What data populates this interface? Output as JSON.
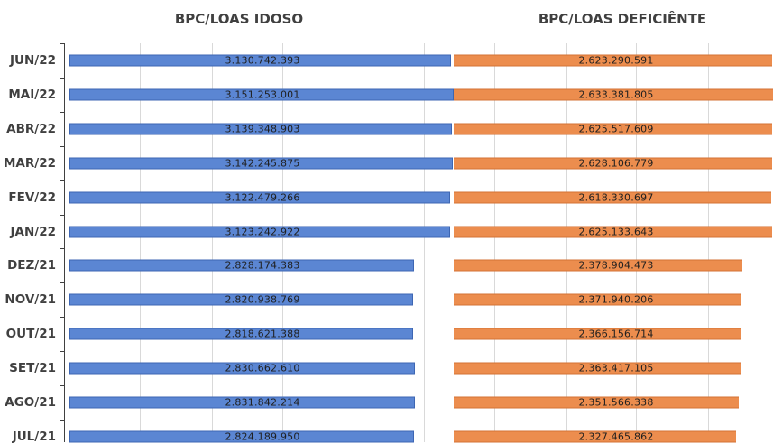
{
  "chart_data": {
    "type": "bar",
    "orientation": "horizontal",
    "stacked": true,
    "categories": [
      "JUN/22",
      "MAI/22",
      "ABR/22",
      "MAR/22",
      "FEV/22",
      "JAN/22",
      "DEZ/21",
      "NOV/21",
      "OUT/21",
      "SET/21",
      "AGO/21",
      "JUL/21"
    ],
    "series": [
      {
        "name": "BPC/LOAS IDOSO",
        "color": "#5b86d3",
        "values": [
          3130742393,
          3151253001,
          3139348903,
          3142245875,
          3122479266,
          3123242922,
          2828174383,
          2820938769,
          2818621388,
          2830662610,
          2831842214,
          2824189950
        ],
        "labels": [
          "3.130.742.393",
          "3.151.253.001",
          "3.139.348.903",
          "3.142.245.875",
          "3.122.479.266",
          "3.123.242.922",
          "2.828.174.383",
          "2.820.938.769",
          "2.818.621.388",
          "2.830.662.610",
          "2.831.842.214",
          "2.824.189.950"
        ]
      },
      {
        "name": "BPC/LOAS DEFICIÊNTE",
        "color": "#ec8d4e",
        "values": [
          2623290591,
          2633381805,
          2625517609,
          2628106779,
          2618330697,
          2625133643,
          2378904473,
          2371940206,
          2366156714,
          2363417105,
          2351566338,
          2327465862
        ],
        "labels": [
          "2.623.290.591",
          "2.633.381.805",
          "2.625.517.609",
          "2.628.106.779",
          "2.618.330.697",
          "2.625.133.643",
          "2.378.904.473",
          "2.371.940.206",
          "2.366.156.714",
          "2.363.417.105",
          "2.351.566.338",
          "2.327.465.862"
        ]
      }
    ],
    "grid": true,
    "legend": "series titles above each bar group"
  }
}
